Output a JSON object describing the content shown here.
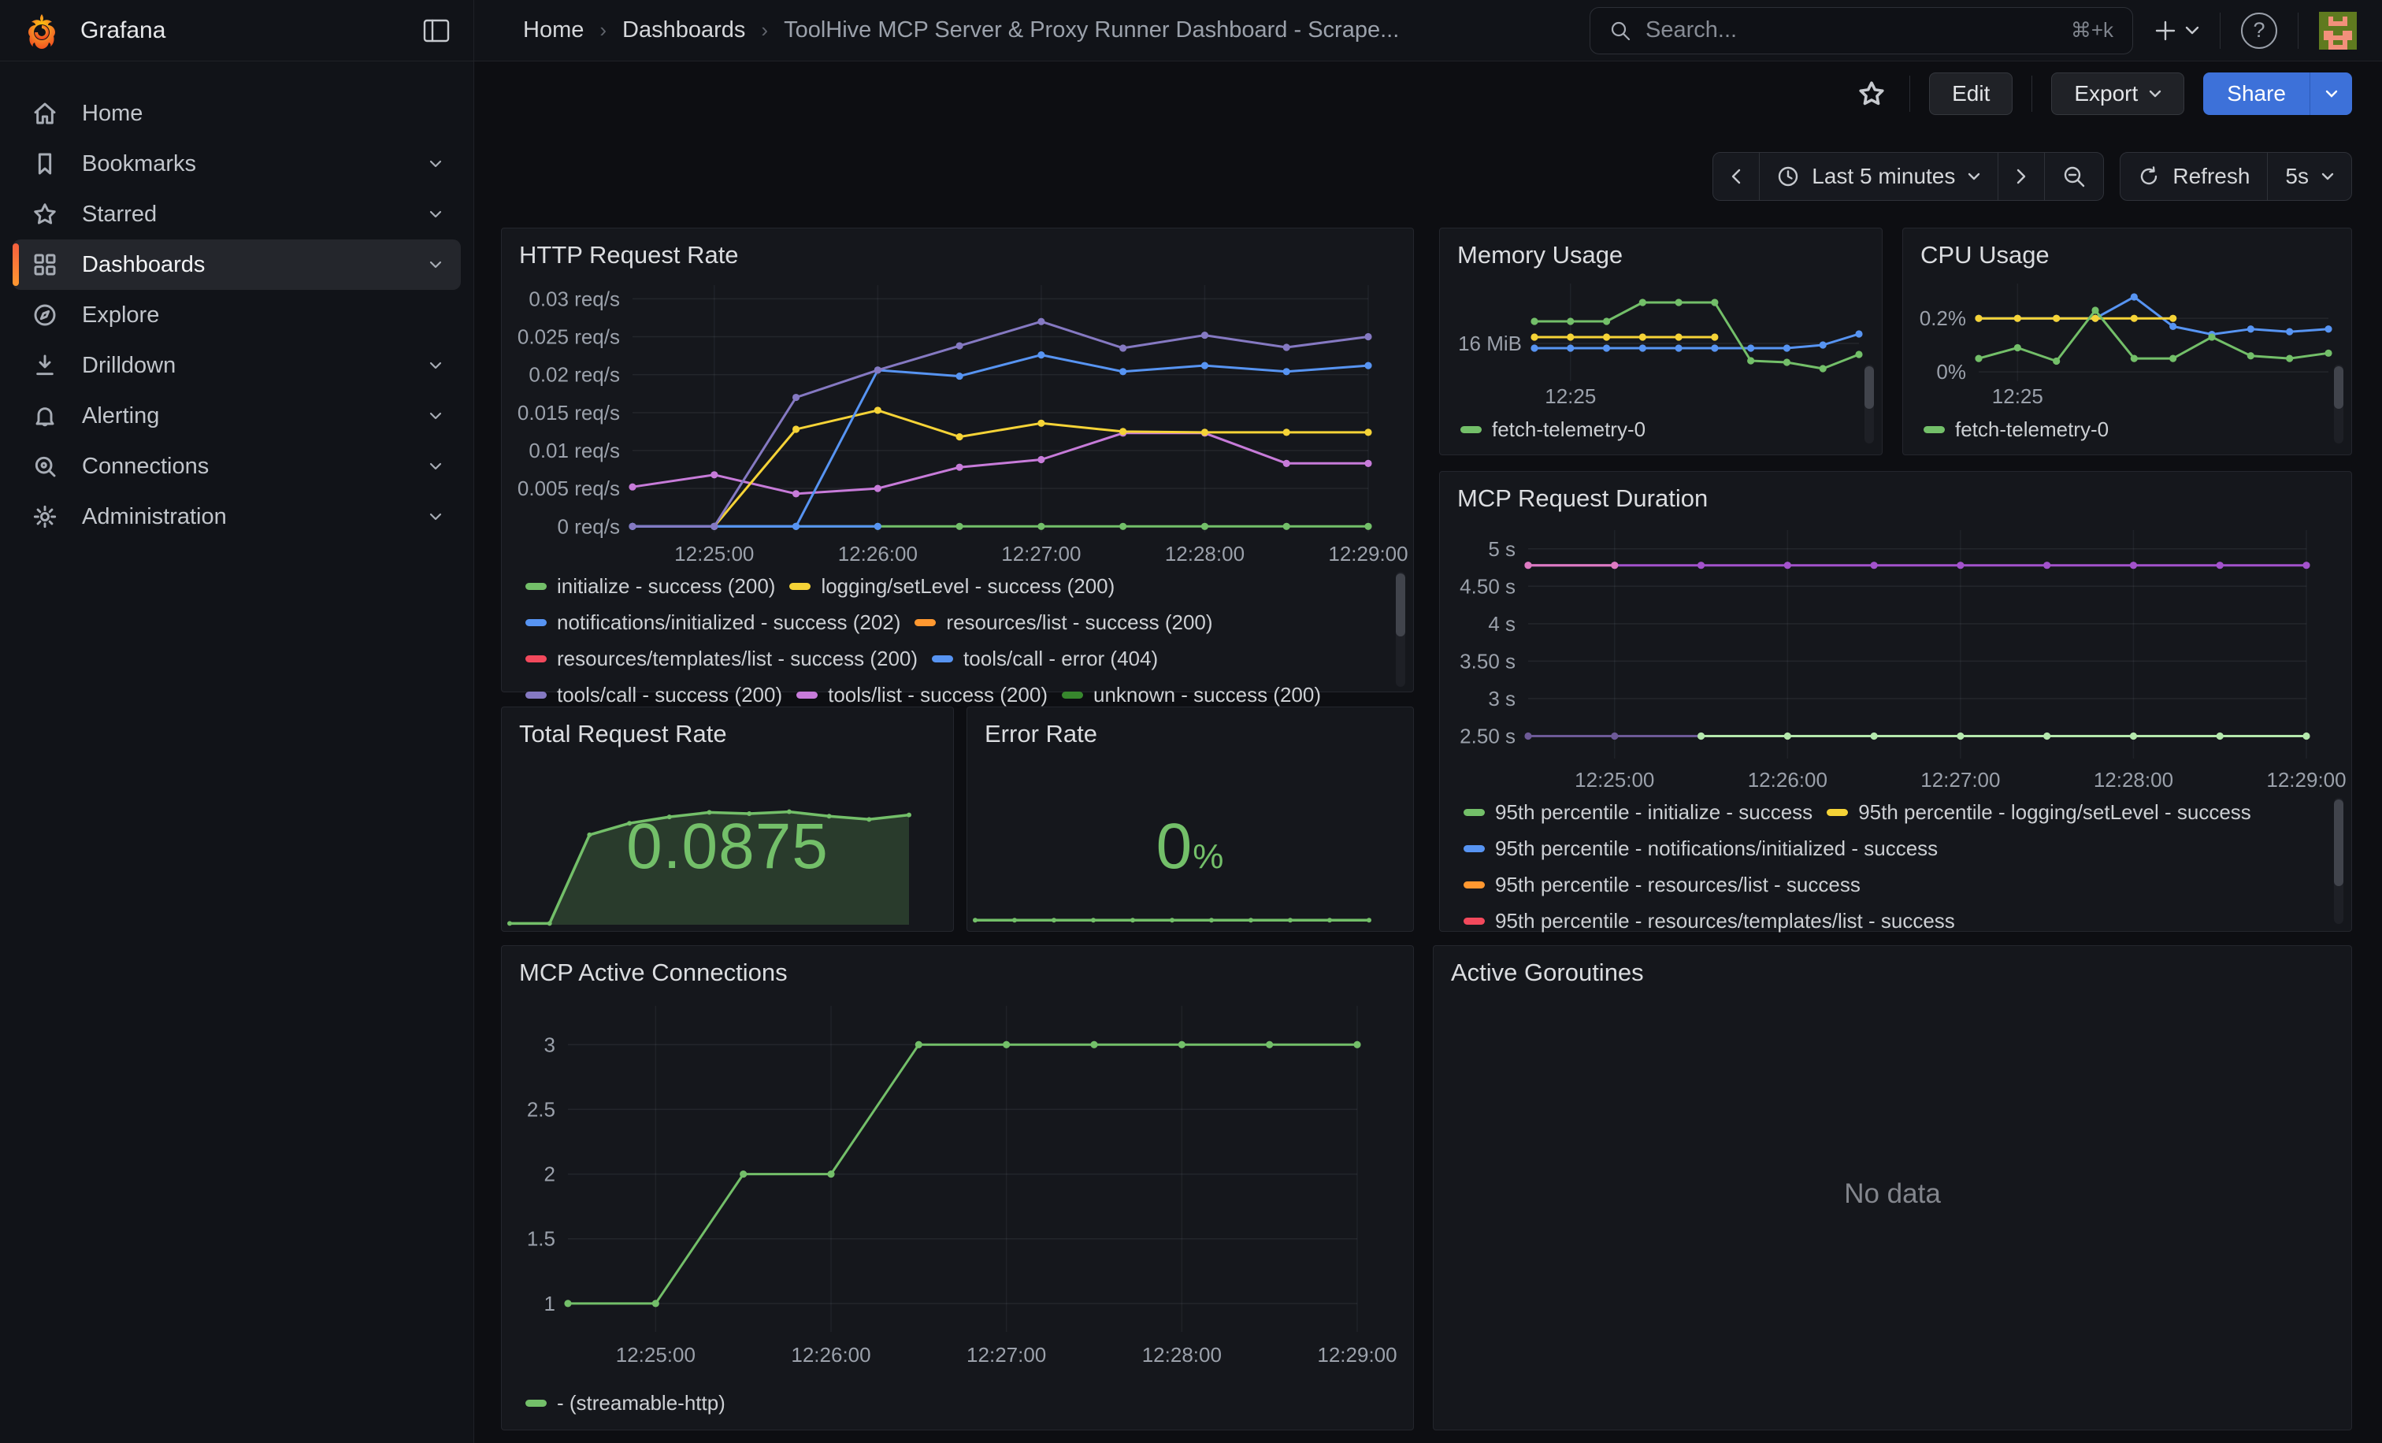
{
  "topbar": {
    "brand": "Grafana",
    "breadcrumb": [
      "Home",
      "Dashboards",
      "ToolHive MCP Server & Proxy Runner Dashboard - Scrape..."
    ],
    "search": {
      "placeholder": "Search...",
      "shortcut": "⌘+k"
    }
  },
  "toolbar": {
    "edit": "Edit",
    "export": "Export",
    "share": "Share"
  },
  "timebar": {
    "range": "Last 5 minutes",
    "refresh": "Refresh",
    "interval": "5s"
  },
  "sidebar": {
    "items": [
      {
        "label": "Home"
      },
      {
        "label": "Bookmarks"
      },
      {
        "label": "Starred"
      },
      {
        "label": "Dashboards"
      },
      {
        "label": "Explore"
      },
      {
        "label": "Drilldown"
      },
      {
        "label": "Alerting"
      },
      {
        "label": "Connections"
      },
      {
        "label": "Administration"
      }
    ]
  },
  "panels": {
    "total": {
      "title": "Total Request Rate",
      "value": "0.0875"
    },
    "error": {
      "title": "Error Rate",
      "value": "0",
      "unit": "%"
    },
    "goroutines": {
      "title": "Active Goroutines",
      "message": "No data"
    }
  },
  "colors": {
    "accent_orange": "#FF9830",
    "primary_blue": "#3D71D9",
    "stat_green": "#73BF69"
  },
  "chart_data": {
    "http": {
      "type": "line",
      "title": "HTTP Request Rate",
      "points": 10,
      "x_times": [
        "12:24:30",
        "12:25:00",
        "12:25:30",
        "12:26:00",
        "12:26:30",
        "12:27:00",
        "12:27:30",
        "12:28:00",
        "12:28:30",
        "12:29:00"
      ],
      "ylim": [
        -0.0008,
        0.0318
      ],
      "yticks": [
        {
          "v": 0,
          "label": "0 req/s"
        },
        {
          "v": 0.005,
          "label": "0.005 req/s"
        },
        {
          "v": 0.01,
          "label": "0.01 req/s"
        },
        {
          "v": 0.015,
          "label": "0.015 req/s"
        },
        {
          "v": 0.02,
          "label": "0.02 req/s"
        },
        {
          "v": 0.025,
          "label": "0.025 req/s"
        },
        {
          "v": 0.03,
          "label": "0.03 req/s"
        }
      ],
      "xticks": [
        {
          "i": 1,
          "label": "12:25:00"
        },
        {
          "i": 3,
          "label": "12:26:00"
        },
        {
          "i": 5,
          "label": "12:27:00"
        },
        {
          "i": 7,
          "label": "12:28:00"
        },
        {
          "i": 9,
          "label": "12:29:00"
        }
      ],
      "series": [
        {
          "name": "initialize - success (200)",
          "color": "#73BF69",
          "values": [
            0,
            0,
            0,
            0,
            0,
            0,
            0,
            0,
            0,
            0
          ]
        },
        {
          "name": "tools/call - error (404)",
          "color": "#5794F2",
          "values": [
            0,
            0,
            0,
            0,
            null,
            null,
            null,
            null,
            null,
            null
          ]
        },
        {
          "name": "tools/list - success (200)",
          "color": "#C77BD9",
          "values": [
            0.0052,
            0.0068,
            0.0043,
            0.005,
            0.0078,
            0.0088,
            0.0123,
            0.0123,
            0.0083,
            0.0083
          ]
        },
        {
          "name": "logging/setLevel - success (200)",
          "color": "#F5D337",
          "values": [
            null,
            0,
            0.0128,
            0.0153,
            0.0118,
            0.0136,
            0.0125,
            0.0124,
            0.0124,
            0.0124
          ]
        },
        {
          "name": "notifications/initialized - success (202)",
          "color": "#5794F2",
          "values": [
            0,
            0,
            0,
            0.0206,
            0.0198,
            0.0226,
            0.0204,
            0.0212,
            0.0204,
            0.0212
          ]
        },
        {
          "name": "tools/call - success (200)",
          "color": "#8579C2",
          "values": [
            0,
            0,
            0.017,
            0.0206,
            0.0238,
            0.027,
            0.0235,
            0.0252,
            0.0236,
            0.025
          ]
        }
      ],
      "legend": [
        {
          "color": "#73BF69",
          "label": "initialize - success (200)"
        },
        {
          "color": "#F5D337",
          "label": "logging/setLevel - success (200)"
        },
        {
          "color": "#5794F2",
          "label": "notifications/initialized - success (202)"
        },
        {
          "color": "#FF9830",
          "label": "resources/list - success (200)"
        },
        {
          "color": "#F2495C",
          "label": "resources/templates/list - success (200)"
        },
        {
          "color": "#5794F2",
          "label": "tools/call - error (404)"
        },
        {
          "color": "#8579C2",
          "label": "tools/call - success (200)"
        },
        {
          "color": "#C77BD9",
          "label": "tools/list - success (200)"
        },
        {
          "color": "#37872D",
          "label": "unknown - success (200)"
        }
      ]
    },
    "memory": {
      "type": "line",
      "title": "Memory Usage",
      "points": 10,
      "ylim": [
        13.6,
        19.8
      ],
      "yticks": [
        {
          "v": 16,
          "label": "16 MiB"
        }
      ],
      "xticks": [
        {
          "i": 1,
          "label": "12:25"
        }
      ],
      "series": [
        {
          "color": "#5794F2",
          "values": [
            15.7,
            15.7,
            15.7,
            15.7,
            15.7,
            15.7,
            15.7,
            15.7,
            15.9,
            16.6
          ]
        },
        {
          "color": "#F5D337",
          "values": [
            16.4,
            16.4,
            16.4,
            16.4,
            16.4,
            16.4,
            null,
            null,
            null,
            null
          ]
        },
        {
          "name": "fetch-telemetry-0",
          "color": "#73BF69",
          "values": [
            17.4,
            17.4,
            17.4,
            18.6,
            18.6,
            18.6,
            14.9,
            14.8,
            14.4,
            15.3
          ]
        }
      ],
      "legend": [
        {
          "color": "#73BF69",
          "label": "fetch-telemetry-0"
        }
      ]
    },
    "cpu": {
      "type": "line",
      "title": "CPU Usage",
      "points": 10,
      "ylim": [
        -0.035,
        0.33
      ],
      "yticks": [
        {
          "v": 0,
          "label": "0%"
        },
        {
          "v": 0.2,
          "label": "0.2%"
        }
      ],
      "xticks": [
        {
          "i": 1,
          "label": "12:25"
        }
      ],
      "series": [
        {
          "color": "#5794F2",
          "values": [
            0.2,
            0.2,
            0.2,
            0.2,
            0.28,
            0.17,
            0.14,
            0.16,
            0.15,
            0.16
          ]
        },
        {
          "color": "#F5D337",
          "values": [
            0.2,
            0.2,
            0.2,
            0.2,
            0.2,
            0.2,
            null,
            null,
            null,
            null
          ]
        },
        {
          "name": "fetch-telemetry-0",
          "color": "#73BF69",
          "values": [
            0.05,
            0.09,
            0.04,
            0.23,
            0.05,
            0.05,
            0.13,
            0.06,
            0.05,
            0.07
          ]
        }
      ],
      "legend": [
        {
          "color": "#73BF69",
          "label": "fetch-telemetry-0"
        }
      ]
    },
    "duration": {
      "type": "line",
      "title": "MCP Request Duration",
      "points": 10,
      "ylim": [
        2.2,
        5.25
      ],
      "yticks": [
        {
          "v": 2.5,
          "label": "2.50 s"
        },
        {
          "v": 3,
          "label": "3 s"
        },
        {
          "v": 3.5,
          "label": "3.50 s"
        },
        {
          "v": 4,
          "label": "4 s"
        },
        {
          "v": 4.5,
          "label": "4.50 s"
        },
        {
          "v": 5,
          "label": "5 s"
        }
      ],
      "xticks": [
        {
          "i": 1,
          "label": "12:25:00"
        },
        {
          "i": 3,
          "label": "12:26:00"
        },
        {
          "i": 5,
          "label": "12:27:00"
        },
        {
          "i": 7,
          "label": "12:28:00"
        },
        {
          "i": 9,
          "label": "12:29:00"
        }
      ],
      "series": [
        {
          "color": "#6D5A97",
          "values": [
            2.5,
            2.5,
            2.5,
            null,
            null,
            null,
            null,
            null,
            null,
            null
          ]
        },
        {
          "color": "#B5E8AD",
          "values": [
            null,
            null,
            2.5,
            2.5,
            2.5,
            2.5,
            2.5,
            2.5,
            2.5,
            2.5
          ]
        },
        {
          "color": "#A352CC",
          "values": [
            4.78,
            4.78,
            4.78,
            4.78,
            4.78,
            4.78,
            4.78,
            4.78,
            4.78,
            4.78
          ]
        },
        {
          "color": "#DE7BC2",
          "values": [
            4.78,
            4.78,
            null,
            null,
            null,
            null,
            null,
            null,
            null,
            null
          ]
        }
      ],
      "legend": [
        {
          "color": "#73BF69",
          "label": "95th percentile - initialize - success"
        },
        {
          "color": "#F5D337",
          "label": "95th percentile - logging/setLevel - success"
        },
        {
          "color": "#5794F2",
          "label": "95th percentile - notifications/initialized - success"
        },
        {
          "color": "#FF9830",
          "label": "95th percentile - resources/list - success"
        },
        {
          "color": "#F2495C",
          "label": "95th percentile - resources/templates/list - success"
        }
      ]
    },
    "connections": {
      "type": "line",
      "title": "MCP Active Connections",
      "points": 10,
      "ylim": [
        0.78,
        3.3
      ],
      "yticks": [
        {
          "v": 1,
          "label": "1"
        },
        {
          "v": 1.5,
          "label": "1.5"
        },
        {
          "v": 2,
          "label": "2"
        },
        {
          "v": 2.5,
          "label": "2.5"
        },
        {
          "v": 3,
          "label": "3"
        }
      ],
      "xticks": [
        {
          "i": 1,
          "label": "12:25:00"
        },
        {
          "i": 3,
          "label": "12:26:00"
        },
        {
          "i": 5,
          "label": "12:27:00"
        },
        {
          "i": 7,
          "label": "12:28:00"
        },
        {
          "i": 9,
          "label": "12:29:00"
        }
      ],
      "series": [
        {
          "name": "- (streamable-http)",
          "color": "#73BF69",
          "values": [
            1,
            1,
            2,
            2,
            3,
            3,
            3,
            3,
            3,
            3
          ]
        }
      ],
      "legend": [
        {
          "color": "#73BF69",
          "label": "- (streamable-http)"
        }
      ]
    },
    "total_spark": {
      "type": "area",
      "points": 11,
      "ylim": [
        0,
        0.1
      ],
      "area_fill": "rgba(115,191,105,0.22)",
      "series": [
        {
          "color": "#73BF69",
          "values": [
            0.001,
            0.001,
            0.07,
            0.079,
            0.084,
            0.0875,
            0.0865,
            0.088,
            0.0845,
            0.082,
            0.0855
          ]
        }
      ]
    },
    "error_spark": {
      "type": "line",
      "points": 11,
      "ylim": [
        0,
        1
      ],
      "series": [
        {
          "color": "#73BF69",
          "values": [
            0.02,
            0.02,
            0.02,
            0.02,
            0.02,
            0.02,
            0.02,
            0.02,
            0.02,
            0.02,
            0.02
          ]
        }
      ]
    }
  }
}
